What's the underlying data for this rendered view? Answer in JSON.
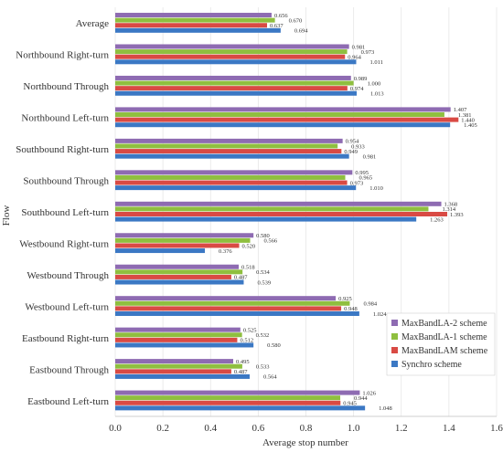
{
  "chart_data": {
    "type": "bar",
    "orientation": "horizontal",
    "title": "",
    "xlabel": "Average stop number",
    "ylabel": "Flow",
    "xlim": [
      0,
      1.6
    ],
    "xticks": [
      "0.0",
      "0.2",
      "0.4",
      "0.6",
      "0.8",
      "1.0",
      "1.2",
      "1.4",
      "1.6"
    ],
    "grid": "vertical",
    "legend_position": "bottom-right",
    "categories": [
      "Average",
      "Northbound Right-turn",
      "Northbound Through",
      "Northbound Left-turn",
      "Southbound Right-turn",
      "Southbound Through",
      "Southbound Left-turn",
      "Westbound Right-turn",
      "Westbound Through",
      "Westbound Left-turn",
      "Eastbound Right-turn",
      "Eastbound Through",
      "Eastbound Left-turn"
    ],
    "series": [
      {
        "name": "MaxBandLA-2 scheme",
        "color": "#8e6bb2",
        "values": [
          0.656,
          0.981,
          0.989,
          1.407,
          0.954,
          0.995,
          1.368,
          0.58,
          0.518,
          0.925,
          0.525,
          0.495,
          1.026
        ],
        "labels": [
          "0.656",
          "0.981",
          "0.989",
          "1.407",
          "0.954",
          "0.995",
          "1.368",
          "0.580",
          "0.518",
          "0.925",
          "0.525",
          "0.495",
          "1.026"
        ]
      },
      {
        "name": "MaxBandLA-1 scheme",
        "color": "#8fbf3f",
        "values": [
          0.67,
          0.973,
          1.0,
          1.381,
          0.933,
          0.965,
          1.314,
          0.566,
          0.534,
          0.984,
          0.532,
          0.533,
          0.944
        ],
        "labels": [
          "0.670",
          "0.973",
          "1.000",
          "1.381",
          "0.933",
          "0.965",
          "1.314",
          "0.566",
          "0.534",
          "0.984",
          "0.532",
          "0.533",
          "0.944"
        ]
      },
      {
        "name": "MaxBandLAM scheme",
        "color": "#d94a44",
        "values": [
          0.637,
          0.964,
          0.974,
          1.44,
          0.949,
          0.973,
          1.393,
          0.52,
          0.487,
          0.948,
          0.512,
          0.487,
          0.945
        ],
        "labels": [
          "0.637",
          "0.964",
          "0.974",
          "1.440",
          "0.949",
          "0.973",
          "1.393",
          "0.520",
          "0.487",
          "0.948",
          "0.512",
          "0.487",
          "0.945"
        ]
      },
      {
        "name": "Synchro scheme",
        "color": "#3b78c4",
        "values": [
          0.694,
          1.011,
          1.013,
          1.405,
          0.981,
          1.01,
          1.263,
          0.376,
          0.539,
          1.024,
          0.58,
          0.564,
          1.048
        ],
        "labels": [
          "0.694",
          "1.011",
          "1.013",
          "1.405",
          "0.981",
          "1.010",
          "1.263",
          "0.376",
          "0.539",
          "1.024",
          "0.580",
          "0.564",
          "1.048"
        ]
      }
    ]
  }
}
